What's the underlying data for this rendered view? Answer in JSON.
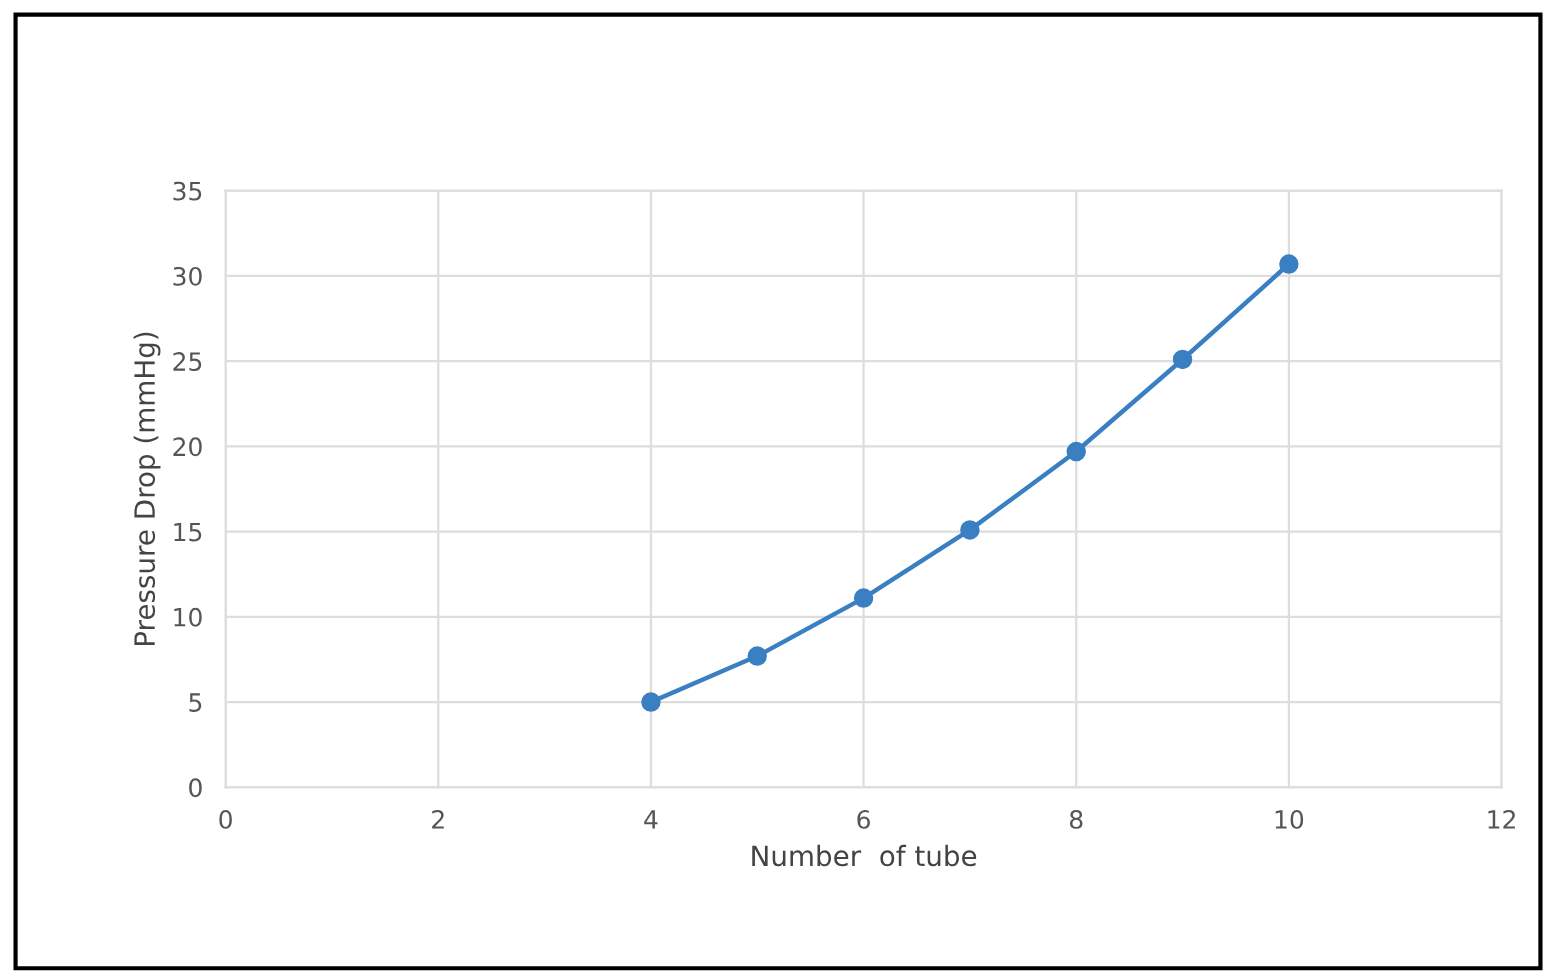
{
  "chart_data": {
    "type": "line",
    "xlabel": "Number  of tube",
    "ylabel": "Pressure Drop (mmHg)",
    "x": [
      4,
      5,
      6,
      7,
      8,
      9,
      10
    ],
    "series": [
      {
        "color": "#3a7fc1",
        "values": [
          5.0,
          7.7,
          11.1,
          15.1,
          19.7,
          25.1,
          30.7
        ]
      }
    ],
    "xlim": [
      0,
      12
    ],
    "xticks": [
      0,
      2,
      4,
      6,
      8,
      10,
      12
    ],
    "ylim": [
      0,
      35
    ],
    "yticks": [
      0,
      5,
      10,
      15,
      20,
      25,
      30,
      35
    ],
    "grid": true,
    "marker": "circle",
    "line_style": "solid",
    "legend": false
  }
}
